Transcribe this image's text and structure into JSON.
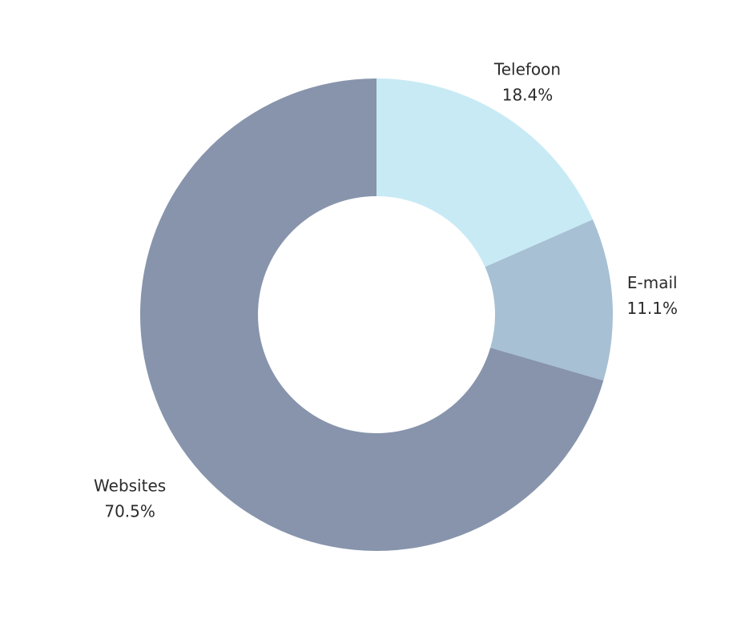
{
  "chart_data": {
    "type": "donut",
    "categories": [
      "Telefoon",
      "E-mail",
      "Websites"
    ],
    "values": [
      18.4,
      11.1,
      70.5
    ],
    "value_labels": [
      "18.4%",
      "11.1%",
      "70.5%"
    ],
    "colors": [
      "#c8eaf5",
      "#a7c0d3",
      "#8794ac"
    ]
  }
}
